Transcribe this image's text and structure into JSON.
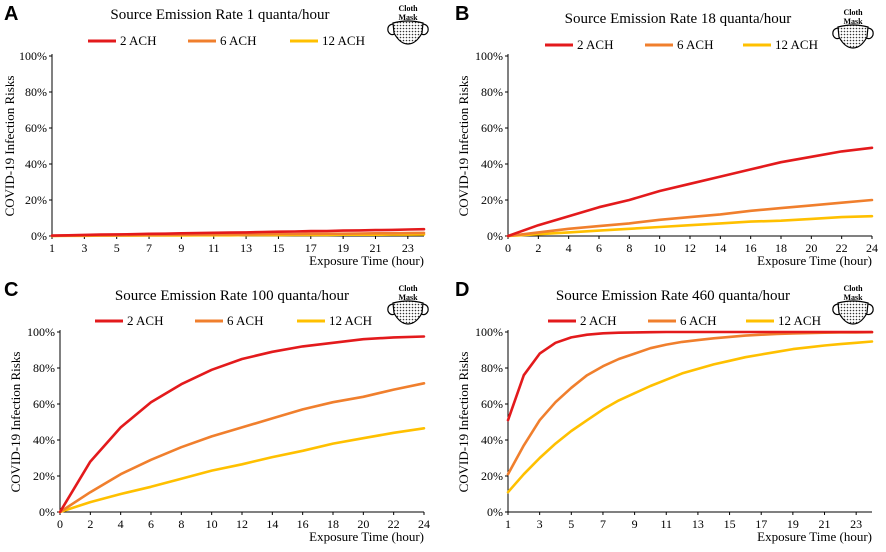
{
  "series_colors": {
    "2 ACH": "#e31a1c",
    "6 ACH": "#f07f2d",
    "12 ACH": "#ffc000"
  },
  "icon": {
    "name": "cloth-mask-icon",
    "line1": "Cloth",
    "line2": "Mask"
  },
  "chart_data": [
    {
      "type": "line",
      "panel": "A",
      "title": "Source Emission Rate 1 quanta/hour",
      "xlabel": "Exposure Time (hour)",
      "ylabel": "COVID-19 Infection Risks",
      "xlim": [
        1,
        24
      ],
      "ylim": [
        0,
        100
      ],
      "x_ticks": [
        1,
        3,
        5,
        7,
        9,
        11,
        13,
        15,
        17,
        19,
        21,
        23
      ],
      "y_ticks": [
        "0%",
        "20%",
        "40%",
        "60%",
        "80%",
        "100%"
      ],
      "legend": [
        "2 ACH",
        "6 ACH",
        "12 ACH"
      ],
      "x": [
        1,
        2,
        3,
        4,
        5,
        6,
        7,
        8,
        9,
        10,
        11,
        12,
        13,
        14,
        15,
        16,
        17,
        18,
        19,
        20,
        21,
        22,
        23,
        24
      ],
      "series": [
        {
          "name": "2 ACH",
          "values": [
            0.2,
            0.4,
            0.6,
            0.8,
            0.9,
            1.0,
            1.2,
            1.3,
            1.5,
            1.6,
            1.8,
            1.9,
            2.0,
            2.2,
            2.4,
            2.5,
            2.7,
            2.8,
            3.0,
            3.1,
            3.3,
            3.4,
            3.6,
            3.8
          ]
        },
        {
          "name": "6 ACH",
          "values": [
            0.1,
            0.2,
            0.3,
            0.3,
            0.4,
            0.5,
            0.5,
            0.6,
            0.7,
            0.7,
            0.8,
            0.9,
            0.9,
            1.0,
            1.1,
            1.1,
            1.2,
            1.3,
            1.3,
            1.4,
            1.5,
            1.5,
            1.6,
            1.7
          ]
        },
        {
          "name": "12 ACH",
          "values": [
            0.0,
            0.1,
            0.1,
            0.2,
            0.2,
            0.2,
            0.3,
            0.3,
            0.3,
            0.4,
            0.4,
            0.4,
            0.5,
            0.5,
            0.5,
            0.6,
            0.6,
            0.6,
            0.7,
            0.7,
            0.7,
            0.8,
            0.8,
            0.9
          ]
        }
      ]
    },
    {
      "type": "line",
      "panel": "B",
      "title": "Source Emission Rate 18 quanta/hour",
      "xlabel": "Exposure Time (hour)",
      "ylabel": "COVID-19 Infection Risks",
      "xlim": [
        0,
        24
      ],
      "ylim": [
        0,
        100
      ],
      "x_ticks": [
        0,
        2,
        4,
        6,
        8,
        10,
        12,
        14,
        16,
        18,
        20,
        22,
        24
      ],
      "y_ticks": [
        "0%",
        "20%",
        "40%",
        "60%",
        "80%",
        "100%"
      ],
      "legend": [
        "2 ACH",
        "6 ACH",
        "12 ACH"
      ],
      "x": [
        0,
        2,
        4,
        6,
        8,
        10,
        12,
        14,
        16,
        18,
        20,
        22,
        24
      ],
      "series": [
        {
          "name": "2 ACH",
          "values": [
            0,
            6,
            11,
            16,
            20,
            25,
            29,
            33,
            37,
            41,
            44,
            47,
            49
          ]
        },
        {
          "name": "6 ACH",
          "values": [
            0,
            2,
            4,
            5.5,
            7,
            9,
            10.5,
            12,
            14,
            15.5,
            17,
            18.5,
            20
          ]
        },
        {
          "name": "12 ACH",
          "values": [
            0,
            1,
            2,
            3,
            4,
            5,
            6,
            7,
            8,
            8.5,
            9.5,
            10.5,
            11
          ]
        }
      ]
    },
    {
      "type": "line",
      "panel": "C",
      "title": "Source Emission Rate 100 quanta/hour",
      "xlabel": "Exposure Time (hour)",
      "ylabel": "COVID-19 Infection Risks",
      "xlim": [
        0,
        24
      ],
      "ylim": [
        0,
        100
      ],
      "x_ticks": [
        0,
        2,
        4,
        6,
        8,
        10,
        12,
        14,
        16,
        18,
        20,
        22,
        24
      ],
      "y_ticks": [
        "0%",
        "20%",
        "40%",
        "60%",
        "80%",
        "100%"
      ],
      "legend": [
        "2 ACH",
        "6 ACH",
        "12 ACH"
      ],
      "x": [
        0,
        2,
        4,
        6,
        8,
        10,
        12,
        14,
        16,
        18,
        20,
        22,
        24
      ],
      "series": [
        {
          "name": "2 ACH",
          "values": [
            0,
            28,
            47,
            61,
            71,
            79,
            85,
            89,
            92,
            94,
            96,
            97,
            97.5
          ]
        },
        {
          "name": "6 ACH",
          "values": [
            0,
            11,
            21,
            29,
            36,
            42,
            47,
            52,
            57,
            61,
            64,
            68,
            71.5
          ]
        },
        {
          "name": "12 ACH",
          "values": [
            0,
            5.5,
            10,
            14,
            18.5,
            23,
            26.5,
            30.5,
            34,
            38,
            41,
            44,
            46.5
          ]
        }
      ]
    },
    {
      "type": "line",
      "panel": "D",
      "title": "Source Emission Rate 460 quanta/hour",
      "xlabel": "Exposure Time (hour)",
      "ylabel": "COVID-19 Infection Risks",
      "xlim": [
        1,
        24
      ],
      "ylim": [
        0,
        100
      ],
      "x_ticks": [
        1,
        3,
        5,
        7,
        9,
        11,
        13,
        15,
        17,
        19,
        21,
        23
      ],
      "y_ticks": [
        "0%",
        "20%",
        "40%",
        "60%",
        "80%",
        "100%"
      ],
      "legend": [
        "2 ACH",
        "6 ACH",
        "12 ACH"
      ],
      "x": [
        1,
        2,
        3,
        4,
        5,
        6,
        7,
        8,
        9,
        10,
        11,
        12,
        13,
        14,
        15,
        16,
        17,
        18,
        19,
        20,
        21,
        22,
        23,
        24
      ],
      "series": [
        {
          "name": "2 ACH",
          "values": [
            51,
            76,
            88,
            94,
            97,
            98.5,
            99.3,
            99.6,
            99.8,
            99.9,
            100,
            100,
            100,
            100,
            100,
            100,
            100,
            100,
            100,
            100,
            100,
            100,
            100,
            100
          ]
        },
        {
          "name": "6 ACH",
          "values": [
            21,
            37,
            51,
            61,
            69,
            76,
            81,
            85,
            88,
            91,
            93,
            94.5,
            95.5,
            96.5,
            97.3,
            98,
            98.5,
            98.9,
            99.2,
            99.4,
            99.6,
            99.7,
            99.8,
            99.9
          ]
        },
        {
          "name": "12 ACH",
          "values": [
            11,
            21,
            30,
            38,
            45,
            51,
            57,
            62,
            66,
            70,
            73.5,
            77,
            79.5,
            82,
            84,
            86,
            87.5,
            89,
            90.5,
            91.5,
            92.5,
            93.3,
            94,
            94.7
          ]
        }
      ]
    }
  ]
}
